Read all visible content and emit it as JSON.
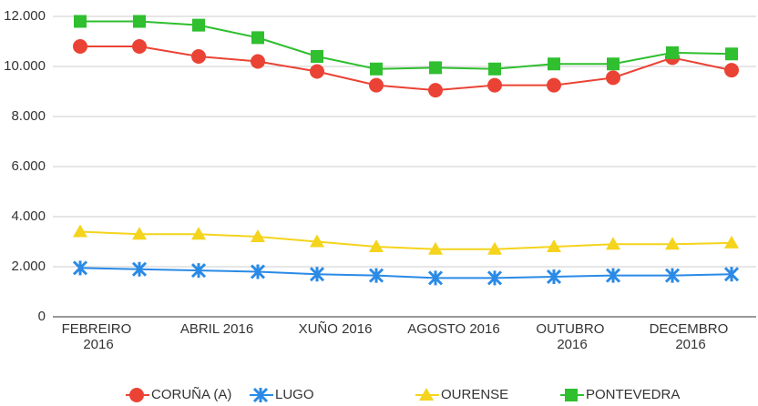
{
  "chart_data": {
    "type": "line",
    "categories": [
      "FEBREIRO 2016",
      null,
      "ABRIL 2016",
      null,
      "XUÑO 2016",
      null,
      "AGOSTO 2016",
      null,
      "OUTUBRO 2016",
      null,
      "DECEMBRO 2016",
      null
    ],
    "series": [
      {
        "name": "CORUÑA (A)",
        "color": "#ea4335",
        "marker": "circle",
        "values": [
          10800,
          10800,
          10400,
          10200,
          9800,
          9250,
          9050,
          9250,
          9250,
          9550,
          10350,
          9850
        ]
      },
      {
        "name": "LUGO",
        "color": "#2a8ae6",
        "marker": "star",
        "values": [
          1950,
          1900,
          1850,
          1800,
          1700,
          1650,
          1550,
          1550,
          1600,
          1650,
          1650,
          1700
        ]
      },
      {
        "name": "OURENSE",
        "color": "#f4d41c",
        "marker": "triangle",
        "values": [
          3400,
          3300,
          3300,
          3200,
          3000,
          2800,
          2700,
          2700,
          2800,
          2900,
          2900,
          2950
        ]
      },
      {
        "name": "PONTEVEDRA",
        "color": "#2fbf2f",
        "marker": "square",
        "values": [
          11800,
          11800,
          11650,
          11150,
          10400,
          9900,
          9950,
          9900,
          10100,
          10100,
          10550,
          10500
        ]
      }
    ],
    "ylim": [
      0,
      12000
    ],
    "yticks": [
      0,
      {
        "value": 2000,
        "label": "2.000"
      },
      {
        "value": 4000,
        "label": "4.000"
      },
      {
        "value": 6000,
        "label": "6.000"
      },
      {
        "value": 8000,
        "label": "8.000"
      },
      {
        "value": 10000,
        "label": "10.000"
      },
      {
        "value": 12000,
        "label": "12.000"
      }
    ],
    "grid": true,
    "legend": "bottom"
  }
}
